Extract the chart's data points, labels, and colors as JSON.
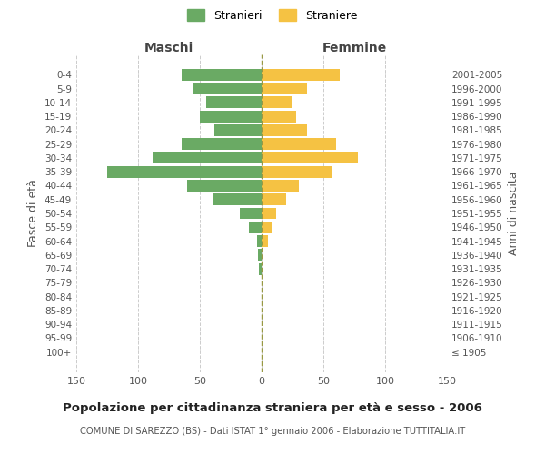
{
  "age_groups": [
    "100+",
    "95-99",
    "90-94",
    "85-89",
    "80-84",
    "75-79",
    "70-74",
    "65-69",
    "60-64",
    "55-59",
    "50-54",
    "45-49",
    "40-44",
    "35-39",
    "30-34",
    "25-29",
    "20-24",
    "15-19",
    "10-14",
    "5-9",
    "0-4"
  ],
  "birth_years": [
    "≤ 1905",
    "1906-1910",
    "1911-1915",
    "1916-1920",
    "1921-1925",
    "1926-1930",
    "1931-1935",
    "1936-1940",
    "1941-1945",
    "1946-1950",
    "1951-1955",
    "1956-1960",
    "1961-1965",
    "1966-1970",
    "1971-1975",
    "1976-1980",
    "1981-1985",
    "1986-1990",
    "1991-1995",
    "1996-2000",
    "2001-2005"
  ],
  "males": [
    0,
    0,
    0,
    0,
    0,
    0,
    2,
    3,
    4,
    10,
    18,
    40,
    60,
    125,
    88,
    65,
    38,
    50,
    45,
    55,
    65
  ],
  "females": [
    0,
    0,
    0,
    0,
    0,
    0,
    0,
    0,
    5,
    8,
    12,
    20,
    30,
    57,
    78,
    60,
    37,
    28,
    25,
    37,
    63
  ],
  "male_color": "#6aaa64",
  "female_color": "#f5c243",
  "grid_color": "#cccccc",
  "background_color": "#ffffff",
  "title": "Popolazione per cittadinanza straniera per età e sesso - 2006",
  "subtitle": "COMUNE DI SAREZZO (BS) - Dati ISTAT 1° gennaio 2006 - Elaborazione TUTTITALIA.IT",
  "ylabel_left": "Fasce di età",
  "ylabel_right": "Anni di nascita",
  "xlabel_maschi": "Maschi",
  "xlabel_femmine": "Femmine",
  "legend_males": "Stranieri",
  "legend_females": "Straniere",
  "xlim": 150,
  "bar_height": 0.85,
  "axvline_color": "#aaaaaa",
  "dashed_color": "#999944"
}
